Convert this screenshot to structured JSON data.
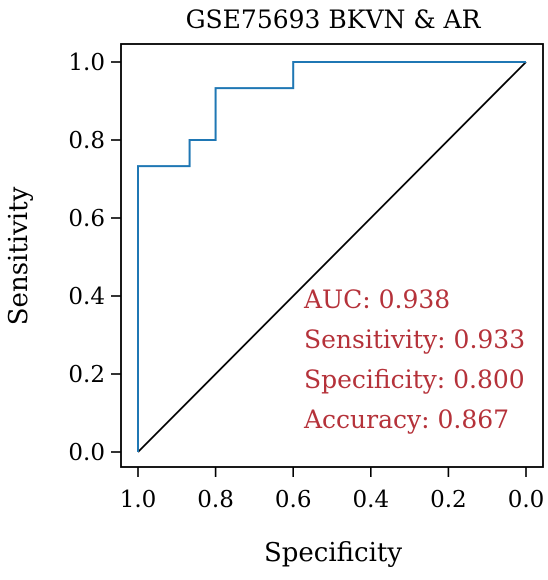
{
  "chart_data": {
    "type": "line",
    "title": "GSE75693 BKVN & AR",
    "xlabel": "Specificity",
    "ylabel": "Sensitivity",
    "xlim": [
      1.0,
      0.0
    ],
    "ylim": [
      0.0,
      1.0
    ],
    "x_ticks": [
      "1.0",
      "0.8",
      "0.6",
      "0.4",
      "0.2",
      "0.0"
    ],
    "y_ticks": [
      "0.0",
      "0.2",
      "0.4",
      "0.6",
      "0.8",
      "1.0"
    ],
    "grid": false,
    "series": [
      {
        "color": "#1f77b4",
        "x": [
          1.0,
          1.0,
          0.867,
          0.867,
          0.8,
          0.8,
          0.6,
          0.6,
          0.0
        ],
        "y": [
          0.0,
          0.733,
          0.733,
          0.8,
          0.8,
          0.933,
          0.933,
          1.0,
          1.0
        ]
      }
    ],
    "reference_line": {
      "color": "#000000",
      "x": [
        1.0,
        0.0
      ],
      "y": [
        0.0,
        1.0
      ]
    },
    "annotations": [
      {
        "text": "AUC: 0.938"
      },
      {
        "text": "Sensitivity: 0.933"
      },
      {
        "text": "Specificity: 0.800"
      },
      {
        "text": "Accuracy: 0.867"
      }
    ],
    "annotation_color": "#b5323a"
  }
}
